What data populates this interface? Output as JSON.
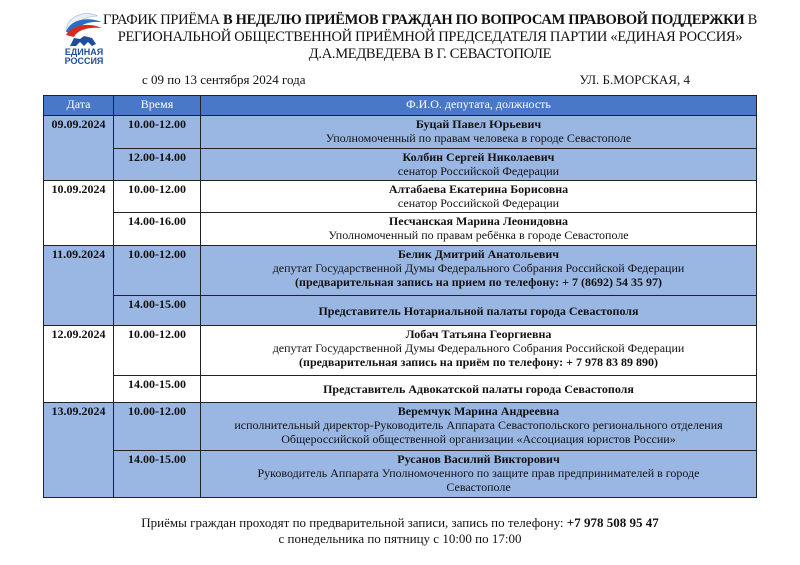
{
  "logo": {
    "text_line1": "ЕДИНАЯ",
    "text_line2": "РОССИЯ"
  },
  "title": {
    "part1": "ГРАФИК ПРИЁМА ",
    "part2_bold": "В НЕДЕЛЮ ПРИЁМОВ ГРАЖДАН ПО ВОПРОСАМ ПРАВОВОЙ ПОДДЕРЖКИ",
    "part3": " В РЕГИОНАЛЬНОЙ ОБЩЕСТВЕННОЙ ПРИЁМНОЙ ПРЕДСЕДАТЕЛЯ ПАРТИИ «ЕДИНАЯ РОССИЯ»",
    "part4": "Д.А.МЕДВЕДЕВА В Г. СЕВАСТОПОЛЕ"
  },
  "period": "с 09  по 13 сентября 2024 года",
  "address": "УЛ. Б.МОРСКАЯ, 4",
  "table": {
    "headers": [
      "Дата",
      "Время",
      "Ф.И.О. депутата, должность"
    ],
    "days": [
      {
        "date": "09.09.2024",
        "shade": "blue",
        "slots": [
          {
            "time": "10.00-12.00",
            "name": "Буцай Павел Юрьевич",
            "lines": [
              "Уполномоченный  по правам человека в городе Севастополе"
            ],
            "h": 33
          },
          {
            "time": "12.00-14.00",
            "name": "Колбин Сергей Николаевич",
            "lines": [
              "сенатор Российской Федерации"
            ],
            "h": 32
          }
        ]
      },
      {
        "date": "10.09.2024",
        "shade": "white",
        "slots": [
          {
            "time": "10.00-12.00",
            "name": "Алтабаева Екатерина Борисовна",
            "lines": [
              "сенатор Российской Федерации"
            ],
            "h": 32
          },
          {
            "time": "14.00-16.00",
            "name": "Песчанская Марина Леонидовна",
            "lines": [
              "Уполномоченный по правам ребёнка в городе Севастополе"
            ],
            "h": 33
          }
        ]
      },
      {
        "date": "11.09.2024",
        "shade": "blue",
        "slots": [
          {
            "time": "10.00-12.00",
            "name": "Белик Дмитрий Анатольевич",
            "lines": [
              "депутат Государственной Думы Федерального Собрания Российской Федерации"
            ],
            "note": "(предварительная запись на прием по телефону: + 7 (8692) 54 35 97)",
            "h": 50
          },
          {
            "time": "14.00-15.00",
            "single": "Представитель Нотариальной палаты города Севастополя",
            "h": 30
          }
        ]
      },
      {
        "date": "12.09.2024",
        "shade": "white",
        "slots": [
          {
            "time": "10.00-12.00",
            "name": "Лобач Татьяна Георгиевна",
            "lines": [
              "депутат Государственной Думы Федерального Собрания Российской Федерации"
            ],
            "note": "(предварительная запись на приём по телефону: + 7 978 83 89 890)",
            "h": 50
          },
          {
            "time": "14.00-15.00",
            "single": "Представитель Адвокатской палаты города Севастополя",
            "h": 27
          }
        ]
      },
      {
        "date": "13.09.2024",
        "shade": "blue",
        "slots": [
          {
            "time": "10.00-12.00",
            "name": "Веремчук Марина Андреевна",
            "lines": [
              "исполнительный директор-Руководитель Аппарата Севастопольского регионального отделения",
              "Общероссийской общественной организации «Ассоциация юристов России»"
            ],
            "h": 48
          },
          {
            "time": "14.00-15.00",
            "name": "Русанов Василий Викторович",
            "lines": [
              "Руководитель Аппарата Уполномоченного по защите прав предпринимателей  в городе",
              "Севастополе"
            ],
            "h": 47
          }
        ]
      }
    ]
  },
  "footer": {
    "line1": "Приёмы граждан проходят по предварительной записи, запись по телефону: ",
    "phone": "+7 978 508 95 47",
    "line2": "с понедельника по пятницу с 10:00 по 17:00"
  },
  "colors": {
    "header": "#4a78c8",
    "row_blue": "#9ab7e4",
    "logo_blue": "#1f4e9c",
    "logo_red": "#d52b1e"
  }
}
